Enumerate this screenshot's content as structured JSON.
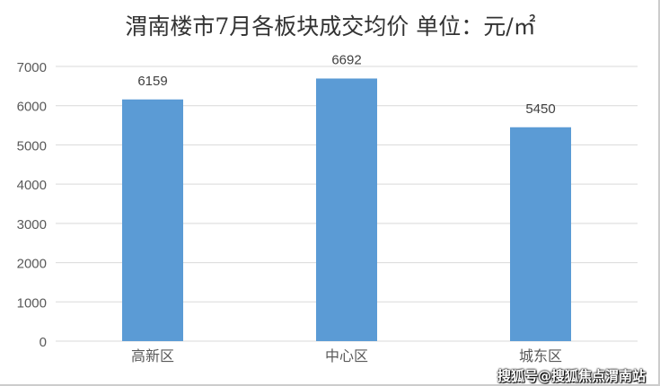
{
  "chart_data": {
    "type": "bar",
    "title": "渭南楼市7月各板块成交均价 单位：元/㎡",
    "categories": [
      "高新区",
      "中心区",
      "城东区"
    ],
    "values": [
      6159,
      6692,
      5450
    ],
    "ylim": [
      0,
      7000
    ],
    "yticks": [
      0,
      1000,
      2000,
      3000,
      4000,
      5000,
      6000,
      7000
    ],
    "grid": true,
    "bar_color": "#5b9bd5"
  },
  "watermark": "搜狐号@搜狐焦点渭南站"
}
